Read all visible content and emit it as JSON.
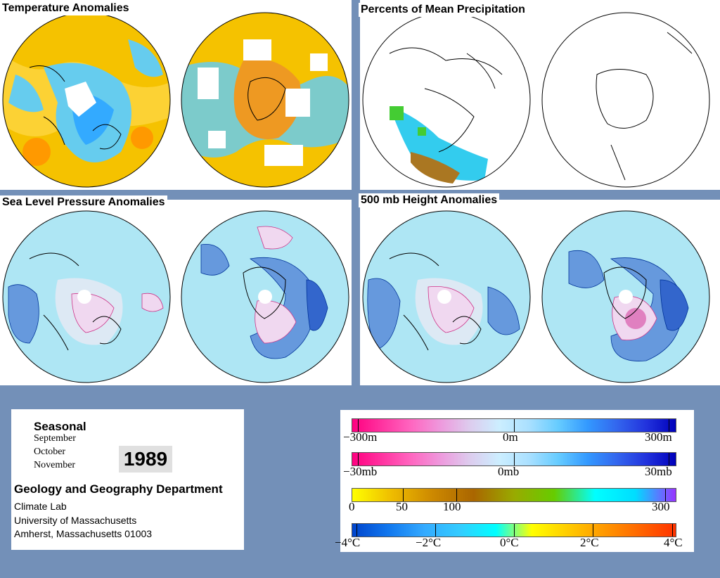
{
  "panels": {
    "temperature": {
      "title": "Temperature Anomalies"
    },
    "precipitation": {
      "title": "Percents of Mean Precipitation"
    },
    "slp": {
      "title": "Sea Level Pressure Anomalies"
    },
    "height500": {
      "title": "500 mb Height Anomalies"
    }
  },
  "info": {
    "period": "Seasonal",
    "months": [
      "September",
      "October",
      "November"
    ],
    "year": "1989",
    "department": "Geology and Geography Department",
    "lab": "Climate Lab",
    "university": "University of Massachusetts",
    "address": "Amherst, Massachusetts 01003"
  },
  "legend": {
    "height": {
      "labels": [
        "−300m",
        "0m",
        "300m"
      ],
      "colors": [
        "#ff0080",
        "#ff33a0",
        "#ff66c0",
        "#ee99dd",
        "#ddccee",
        "#cceeff",
        "#aae0ff",
        "#66ccff",
        "#3399ff",
        "#3366ee",
        "#2233dd",
        "#0000bb"
      ]
    },
    "pressure": {
      "labels": [
        "−30mb",
        "0mb",
        "30mb"
      ],
      "colors": [
        "#ff0080",
        "#ff33a0",
        "#ff66c0",
        "#ee99dd",
        "#ddccee",
        "#cceeff",
        "#aae0ff",
        "#66ccff",
        "#3399ff",
        "#3366ee",
        "#2233dd",
        "#0000bb"
      ]
    },
    "precip": {
      "labels": [
        "0",
        "50",
        "100",
        "300"
      ],
      "colors": [
        "#ffff00",
        "#eebb00",
        "#cc8800",
        "#aa6600",
        "#99aa00",
        "#66cc00",
        "#00ffff",
        "#00ddff",
        "#9933ff"
      ]
    },
    "temp": {
      "labels": [
        "−4°C",
        "−2°C",
        "0°C",
        "2°C",
        "4°C"
      ],
      "colors": [
        "#0044cc",
        "#1177ee",
        "#33aaff",
        "#33ccff",
        "#00ffff",
        "#ffff00",
        "#ffcc00",
        "#ff9900",
        "#ff6600",
        "#ff3300"
      ]
    }
  }
}
